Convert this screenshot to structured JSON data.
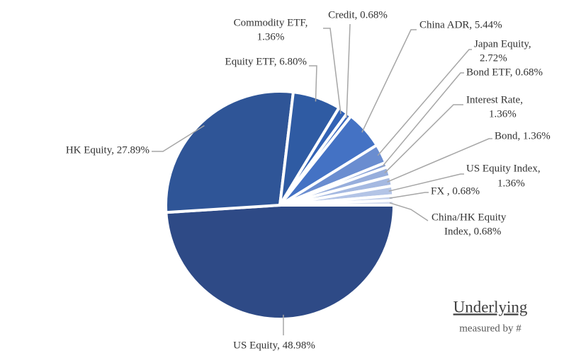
{
  "chart_data": {
    "type": "pie",
    "title": "Underlying",
    "subtitle": "measured by #",
    "labels": [
      [
        "US Equity, 48.98%"
      ],
      [
        "HK Equity, 27.89%"
      ],
      [
        "Equity ETF, 6.80%"
      ],
      [
        "Commodity ETF,",
        "1.36%"
      ],
      [
        "Credit, 0.68%"
      ],
      [
        "China ADR, 5.44%"
      ],
      [
        "Japan Equity,",
        "2.72%"
      ],
      [
        "Bond ETF, 0.68%"
      ],
      [
        "Interest Rate,",
        "1.36%"
      ],
      [
        "Bond, 1.36%"
      ],
      [
        "US Equity Index,",
        "1.36%"
      ],
      [
        "FX , 0.68%"
      ],
      [
        "China/HK Equity",
        "Index, 0.68%"
      ]
    ],
    "values": [
      48.98,
      27.89,
      6.8,
      1.36,
      0.68,
      5.44,
      2.72,
      0.68,
      1.36,
      1.36,
      1.36,
      0.68,
      0.68
    ],
    "colors": [
      "#2e4a86",
      "#2f5597",
      "#2f5ba3",
      "#3262b5",
      "#3a69bf",
      "#4472c4",
      "#6a8dd0",
      "#849fd6",
      "#97aedc",
      "#a5b9e1",
      "#b3c4e6",
      "#c3d0eb",
      "#d4ddf0"
    ]
  }
}
